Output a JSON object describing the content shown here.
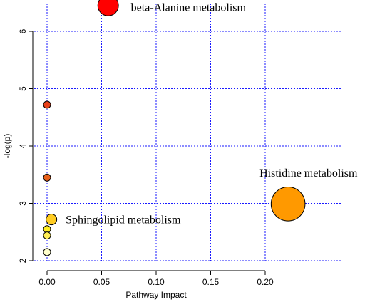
{
  "chart_data": {
    "type": "scatter",
    "xlabel": "Pathway Impact",
    "ylabel": "-log(p)",
    "xlim": [
      -0.01,
      0.23
    ],
    "ylim": [
      2,
      6.5
    ],
    "x_ticks": [
      0.0,
      0.05,
      0.1,
      0.15,
      0.2
    ],
    "x_tick_labels": [
      "0.00",
      "0.05",
      "0.10",
      "0.15",
      "0.20"
    ],
    "y_ticks": [
      2,
      3,
      4,
      5,
      6
    ],
    "y_tick_labels": [
      "2",
      "3",
      "4",
      "5",
      "6"
    ],
    "grid": true,
    "grid_color": "#1a1aff",
    "points": [
      {
        "x": 0.056,
        "y": 6.45,
        "size": 0.056,
        "color": "#ff0000",
        "label": "beta-Alanine metabolism"
      },
      {
        "x": 0.0,
        "y": 4.72,
        "size": 0.0,
        "color": "#e8401a",
        "label": ""
      },
      {
        "x": 0.0,
        "y": 3.45,
        "size": 0.0,
        "color": "#e8601a",
        "label": ""
      },
      {
        "x": 0.221,
        "y": 2.99,
        "size": 0.221,
        "color": "#ff9900",
        "label": "Histidine metabolism"
      },
      {
        "x": 0.004,
        "y": 2.72,
        "size": 0.004,
        "color": "#ffcc22",
        "label": "Sphingolipid metabolism"
      },
      {
        "x": 0.0,
        "y": 2.55,
        "size": 0.0,
        "color": "#ffee22",
        "label": ""
      },
      {
        "x": 0.0,
        "y": 2.44,
        "size": 0.0,
        "color": "#ffee55",
        "label": ""
      },
      {
        "x": 0.0,
        "y": 2.15,
        "size": 0.0,
        "color": "#ffffcc",
        "label": ""
      }
    ]
  }
}
